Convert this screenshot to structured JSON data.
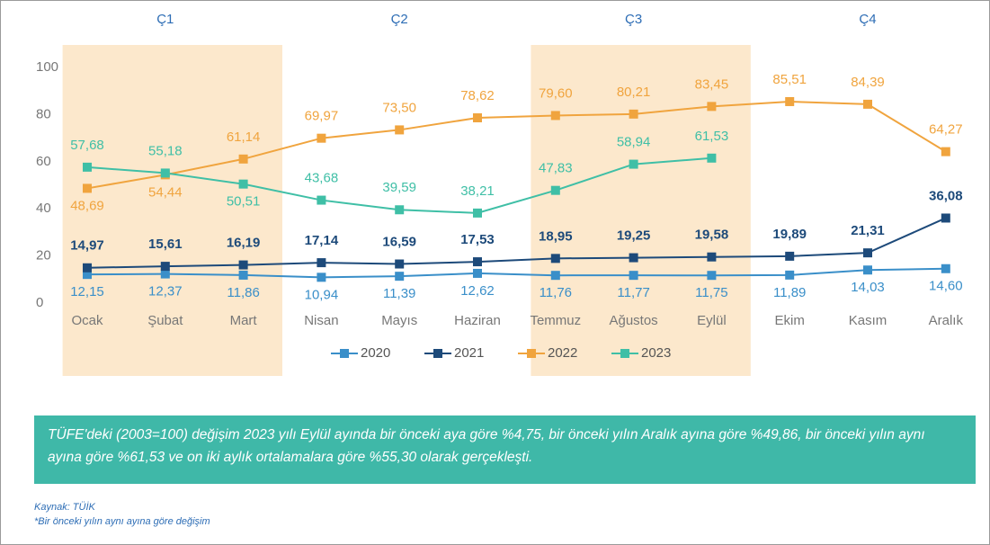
{
  "chart_data": {
    "type": "line",
    "categories": [
      "Ocak",
      "Şubat",
      "Mart",
      "Nisan",
      "Mayıs",
      "Haziran",
      "Temmuz",
      "Ağustos",
      "Eylül",
      "Ekim",
      "Kasım",
      "Aralık"
    ],
    "quarters": [
      "Ç1",
      "Ç2",
      "Ç3",
      "Ç4"
    ],
    "shaded_quarters": [
      0,
      2
    ],
    "series": [
      {
        "name": "2020",
        "color": "#3a8fc9",
        "values": [
          12.15,
          12.37,
          11.86,
          10.94,
          11.39,
          12.62,
          11.76,
          11.77,
          11.75,
          11.89,
          14.03,
          14.6
        ],
        "value_labels": [
          "12,15",
          "12,37",
          "11,86",
          "10,94",
          "11,39",
          "12,62",
          "11,76",
          "11,77",
          "11,75",
          "11,89",
          "14,03",
          "14,60"
        ]
      },
      {
        "name": "2021",
        "color": "#1d4a7a",
        "values": [
          14.97,
          15.61,
          16.19,
          17.14,
          16.59,
          17.53,
          18.95,
          19.25,
          19.58,
          19.89,
          21.31,
          36.08
        ],
        "value_labels": [
          "14,97",
          "15,61",
          "16,19",
          "17,14",
          "16,59",
          "17,53",
          "18,95",
          "19,25",
          "19,58",
          "19,89",
          "21,31",
          "36,08"
        ]
      },
      {
        "name": "2022",
        "color": "#f0a43e",
        "values": [
          48.69,
          54.44,
          61.14,
          69.97,
          73.5,
          78.62,
          79.6,
          80.21,
          83.45,
          85.51,
          84.39,
          64.27
        ],
        "value_labels": [
          "48,69",
          "54,44",
          "61,14",
          "69,97",
          "73,50",
          "78,62",
          "79,60",
          "80,21",
          "83,45",
          "85,51",
          "84,39",
          "64,27"
        ]
      },
      {
        "name": "2023",
        "color": "#3fbfa6",
        "values": [
          57.68,
          55.18,
          50.51,
          43.68,
          39.59,
          38.21,
          47.83,
          58.94,
          61.53,
          null,
          null,
          null
        ],
        "value_labels": [
          "57,68",
          "55,18",
          "50,51",
          "43,68",
          "39,59",
          "38,21",
          "47,83",
          "58,94",
          "61,53",
          null,
          null,
          null
        ]
      }
    ],
    "ylim": [
      0,
      100
    ],
    "yticks": [
      0,
      20,
      40,
      60,
      80,
      100
    ],
    "grid": false,
    "legend": "bottom",
    "note": "TÜFE'deki (2003=100) değişim 2023 yılı Eylül ayında bir önceki aya göre %4,75, bir önceki yılın Aralık ayına göre %49,86, bir önceki yılın aynı ayına göre %61,53 ve on iki aylık ortalamalara göre %55,30 olarak gerçekleşti.",
    "source": "Kaynak: TÜİK",
    "footnote": "*Bir önceki yılın aynı ayına göre değişim"
  }
}
